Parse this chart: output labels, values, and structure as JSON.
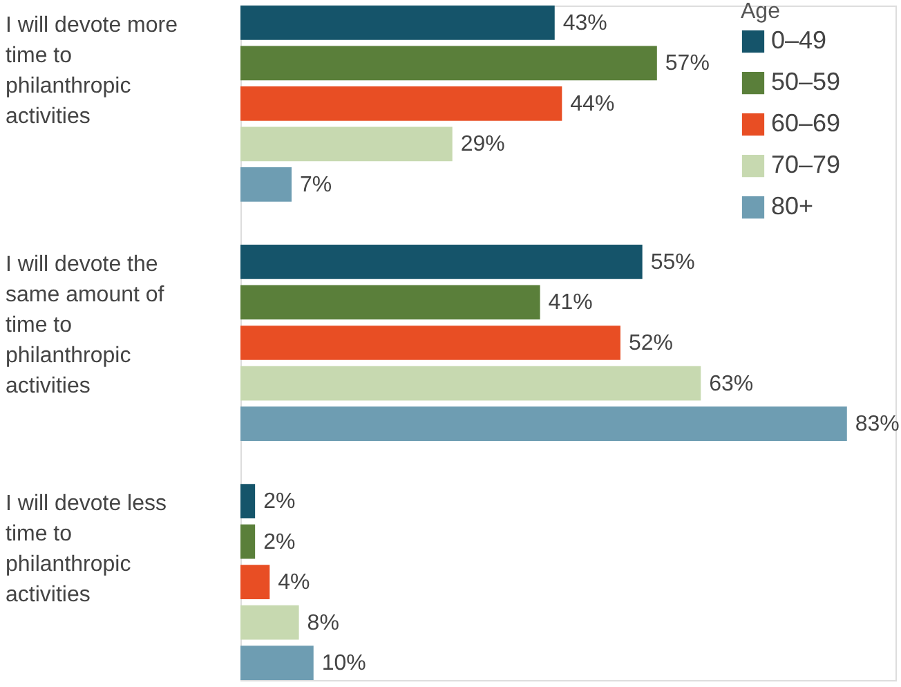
{
  "chart_data": {
    "type": "bar",
    "orientation": "horizontal",
    "categories": [
      "I will devote more time to philanthropic activities",
      "I will devote the same amount of time to philanthropic activities",
      "I will devote less time to philanthropic activities"
    ],
    "legend_title": "Age",
    "legend": "top right",
    "series": [
      {
        "name": "0–49",
        "color": "#15546a",
        "values": [
          43,
          55,
          2
        ],
        "value_labels": [
          "43%",
          "55%",
          "2%"
        ]
      },
      {
        "name": "50–59",
        "color": "#5a7f3a",
        "values": [
          57,
          41,
          2
        ],
        "value_labels": [
          "57%",
          "41%",
          "2%"
        ]
      },
      {
        "name": "60–69",
        "color": "#e84e24",
        "values": [
          44,
          52,
          4
        ],
        "value_labels": [
          "44%",
          "52%",
          "4%"
        ]
      },
      {
        "name": "70–79",
        "color": "#c7d9b0",
        "values": [
          29,
          63,
          8
        ],
        "value_labels": [
          "29%",
          "63%",
          "8%"
        ]
      },
      {
        "name": "80+",
        "color": "#6e9db2",
        "values": [
          7,
          83,
          10
        ],
        "value_labels": [
          "7%",
          "83%",
          "10%"
        ]
      }
    ]
  }
}
